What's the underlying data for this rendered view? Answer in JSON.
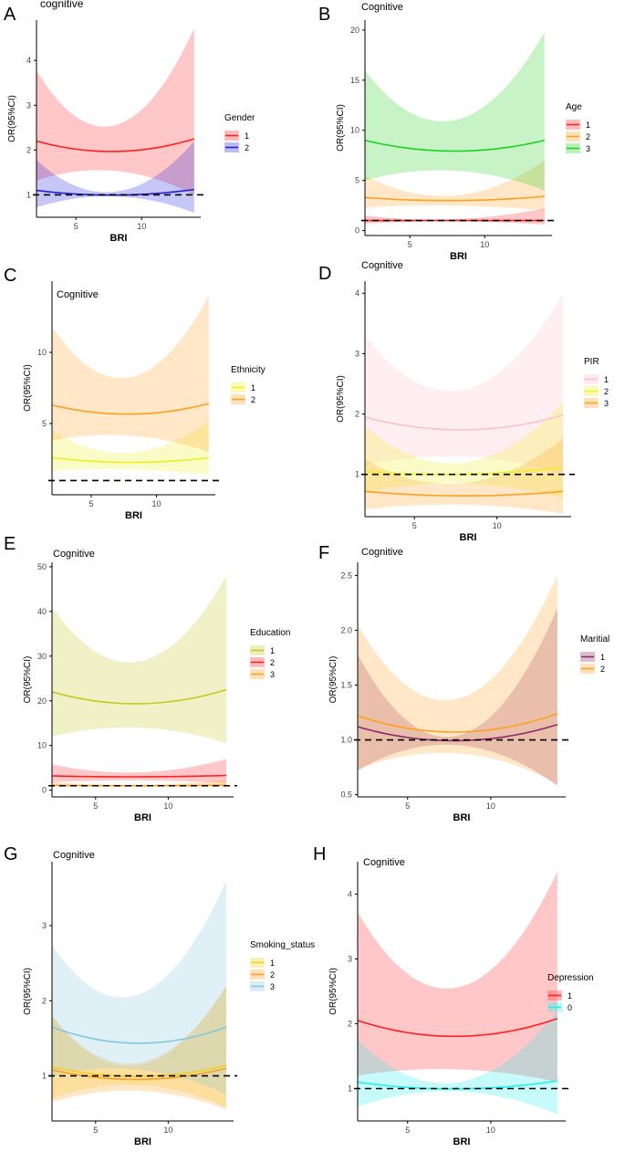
{
  "figure": {
    "panel_count": 8
  },
  "chart_data": [
    {
      "panel": "A",
      "type": "line",
      "title": "cognitive",
      "xlabel": "BRI",
      "ylabel": "OR(95%CI)",
      "xlim": [
        2,
        14.5
      ],
      "ylim": [
        0.5,
        4.9
      ],
      "xticks": [
        5,
        10
      ],
      "yticks": [
        1,
        2,
        3,
        4
      ],
      "ref_line": 1,
      "ref_line_style": "dashed",
      "legend_title": "Gender",
      "x": [
        2,
        6.4,
        14
      ],
      "series": [
        {
          "name": "1",
          "color": "#ff2020",
          "values": [
            2.2,
            1.98,
            2.25
          ],
          "lower": [
            1.32,
            1.55,
            1.0
          ],
          "upper": [
            3.78,
            2.55,
            4.72
          ]
        },
        {
          "name": "2",
          "color": "#2020e0",
          "values": [
            1.1,
            1.0,
            1.12
          ],
          "lower": [
            0.72,
            0.96,
            0.6
          ],
          "upper": [
            1.78,
            1.08,
            2.2
          ]
        }
      ]
    },
    {
      "panel": "B",
      "type": "line",
      "title": "Cognitive",
      "xlabel": "BRI",
      "ylabel": "OR(95%CI)",
      "xlim": [
        2,
        14.5
      ],
      "ylim": [
        -0.5,
        21
      ],
      "xticks": [
        5,
        10
      ],
      "yticks": [
        0,
        5,
        10,
        15,
        20
      ],
      "ref_line": 1,
      "ref_line_style": "dashed",
      "legend_title": "Age",
      "x": [
        2,
        6.4,
        14
      ],
      "series": [
        {
          "name": "1",
          "color": "#ff2020",
          "values": [
            1.0,
            1.0,
            1.0
          ],
          "lower": [
            0.7,
            0.9,
            0.6
          ],
          "upper": [
            1.5,
            1.1,
            2.2
          ]
        },
        {
          "name": "2",
          "color": "#ffa020",
          "values": [
            3.3,
            3.0,
            3.4
          ],
          "lower": [
            2.3,
            2.5,
            2.0
          ],
          "upper": [
            5.5,
            3.5,
            7.0
          ]
        },
        {
          "name": "3",
          "color": "#20d020",
          "values": [
            9.0,
            8.0,
            9.0
          ],
          "lower": [
            5.0,
            6.0,
            4.0
          ],
          "upper": [
            16.0,
            11.0,
            19.8
          ]
        }
      ]
    },
    {
      "panel": "C",
      "type": "line",
      "title": "Cognitive",
      "xlabel": "BRI",
      "ylabel": "OR(95%CI)",
      "xlim": [
        2,
        14.5
      ],
      "ylim": [
        0,
        15
      ],
      "xticks": [
        5,
        10
      ],
      "yticks": [
        5,
        10
      ],
      "ref_line": 1,
      "ref_line_style": "dashed",
      "legend_title": "Ethnicity",
      "x": [
        2,
        6.4,
        14
      ],
      "series": [
        {
          "name": "1",
          "color": "#f0f020",
          "values": [
            2.6,
            2.3,
            2.6
          ],
          "lower": [
            1.7,
            1.8,
            1.4
          ],
          "upper": [
            4.5,
            3.0,
            5.2
          ]
        },
        {
          "name": "2",
          "color": "#ffa020",
          "values": [
            6.3,
            5.7,
            6.4
          ],
          "lower": [
            3.8,
            4.2,
            3.0
          ],
          "upper": [
            11.8,
            8.3,
            14.0
          ]
        }
      ]
    },
    {
      "panel": "D",
      "type": "line",
      "title": "Cognitive",
      "xlabel": "BRI",
      "ylabel": "OR(95%CI)",
      "xlim": [
        2,
        14.5
      ],
      "ylim": [
        0.3,
        4.2
      ],
      "xticks": [
        5,
        10
      ],
      "yticks": [
        1,
        2,
        3,
        4
      ],
      "ref_line": 1,
      "ref_line_style": "dashed",
      "legend_title": "PIR",
      "x": [
        2,
        6.4,
        14
      ],
      "series": [
        {
          "name": "1",
          "color": "#ffc0cb",
          "values": [
            1.95,
            1.75,
            1.98
          ],
          "lower": [
            1.15,
            1.3,
            1.0
          ],
          "upper": [
            3.3,
            2.4,
            4.0
          ]
        },
        {
          "name": "2",
          "color": "#f0f020",
          "values": [
            1.05,
            1.0,
            1.12
          ],
          "lower": [
            0.7,
            0.85,
            0.6
          ],
          "upper": [
            1.8,
            1.2,
            2.2
          ]
        },
        {
          "name": "3",
          "color": "#ffa020",
          "values": [
            0.72,
            0.65,
            0.72
          ],
          "lower": [
            0.42,
            0.5,
            0.35
          ],
          "upper": [
            1.25,
            0.85,
            1.6
          ]
        }
      ]
    },
    {
      "panel": "E",
      "type": "line",
      "title": "Cognitive",
      "xlabel": "BRI",
      "ylabel": "OR(95%CI)",
      "xlim": [
        2,
        14.5
      ],
      "ylim": [
        -1.5,
        51
      ],
      "xticks": [
        5,
        10
      ],
      "yticks": [
        0,
        10,
        20,
        30,
        40,
        50
      ],
      "ref_line": 1,
      "ref_line_style": "dashed",
      "legend_title": "Education",
      "x": [
        2,
        6.4,
        14
      ],
      "series": [
        {
          "name": "1",
          "color": "#c8c820",
          "values": [
            22.0,
            19.5,
            22.5
          ],
          "lower": [
            12.0,
            14.0,
            10.5
          ],
          "upper": [
            41.0,
            29.0,
            48.0
          ]
        },
        {
          "name": "2",
          "color": "#ff2020",
          "values": [
            3.2,
            3.0,
            3.3
          ],
          "lower": [
            1.8,
            2.2,
            1.6
          ],
          "upper": [
            5.8,
            4.0,
            7.0
          ]
        },
        {
          "name": "3",
          "color": "#ffa020",
          "values": [
            1.1,
            1.0,
            1.15
          ],
          "lower": [
            0.7,
            0.85,
            0.6
          ],
          "upper": [
            1.8,
            1.2,
            2.3
          ]
        }
      ]
    },
    {
      "panel": "F",
      "type": "line",
      "title": "Cognitive",
      "xlabel": "BRI",
      "ylabel": "OR(95%CI)",
      "xlim": [
        2,
        14.5
      ],
      "ylim": [
        0.48,
        2.62
      ],
      "xticks": [
        5,
        10
      ],
      "yticks": [
        0.5,
        1.0,
        1.5,
        2.0,
        2.5
      ],
      "ytick_labels": [
        "0.5",
        "1.0",
        "1.5",
        "2.0",
        "2.5"
      ],
      "ref_line": 1,
      "ref_line_style": "dashed",
      "legend_title": "Maritial",
      "x": [
        2,
        6.4,
        14
      ],
      "series": [
        {
          "name": "1",
          "color": "#8b2a6b",
          "values": [
            1.12,
            1.0,
            1.14
          ],
          "lower": [
            0.72,
            0.95,
            0.58
          ],
          "upper": [
            1.78,
            1.05,
            2.2
          ]
        },
        {
          "name": "2",
          "color": "#ffa020",
          "values": [
            1.22,
            1.08,
            1.24
          ],
          "lower": [
            0.73,
            0.88,
            0.6
          ],
          "upper": [
            2.05,
            1.38,
            2.5
          ]
        }
      ]
    },
    {
      "panel": "G",
      "type": "line",
      "title": "Cognitive",
      "xlabel": "BRI",
      "ylabel": "OR(95%CI)",
      "xlim": [
        2,
        14.5
      ],
      "ylim": [
        0.4,
        3.85
      ],
      "xticks": [
        5,
        10
      ],
      "yticks": [
        1,
        2,
        3
      ],
      "ref_line": 1,
      "ref_line_style": "dashed",
      "legend_title": "Smoking_status",
      "x": [
        2,
        6.4,
        14
      ],
      "series": [
        {
          "name": "1",
          "color": "#f0d020",
          "values": [
            1.12,
            1.0,
            1.14
          ],
          "lower": [
            0.7,
            0.88,
            0.58
          ],
          "upper": [
            1.8,
            1.15,
            2.2
          ]
        },
        {
          "name": "2",
          "color": "#ffa020",
          "values": [
            1.08,
            0.96,
            1.1
          ],
          "lower": [
            0.65,
            0.8,
            0.55
          ],
          "upper": [
            1.8,
            1.18,
            2.2
          ]
        },
        {
          "name": "3",
          "color": "#80c8e0",
          "values": [
            1.65,
            1.45,
            1.65
          ],
          "lower": [
            1.0,
            1.1,
            0.75
          ],
          "upper": [
            2.75,
            2.05,
            3.6
          ]
        }
      ]
    },
    {
      "panel": "H",
      "type": "line",
      "title": "Cognitive",
      "xlabel": "BRI",
      "ylabel": "OR(95%CI)",
      "xlim": [
        2,
        14.5
      ],
      "ylim": [
        0.5,
        4.5
      ],
      "xticks": [
        5,
        10
      ],
      "yticks": [
        1,
        2,
        3,
        4
      ],
      "ref_line": 1,
      "ref_line_style": "dashed",
      "legend_title": "Depression",
      "x": [
        2,
        6.4,
        14
      ],
      "series": [
        {
          "name": "1",
          "color": "#ff2020",
          "values": [
            2.05,
            1.82,
            2.08
          ],
          "lower": [
            1.2,
            1.3,
            1.1
          ],
          "upper": [
            3.72,
            2.58,
            4.35
          ]
        },
        {
          "name": "0",
          "color": "#20f0f0",
          "values": [
            1.1,
            1.0,
            1.12
          ],
          "lower": [
            0.72,
            0.95,
            0.6
          ],
          "upper": [
            1.75,
            1.1,
            2.2
          ]
        }
      ]
    }
  ]
}
